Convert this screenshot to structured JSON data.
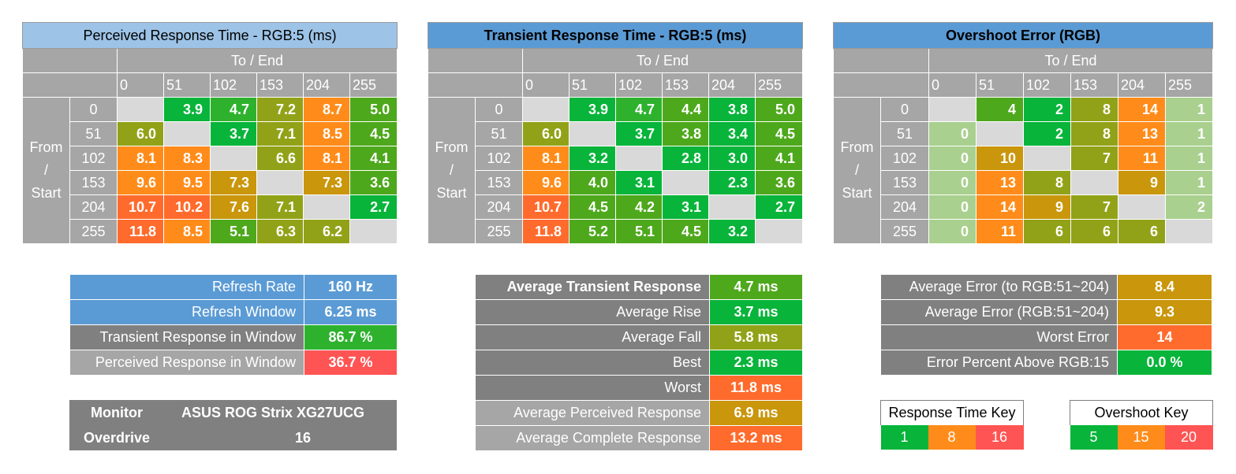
{
  "colors": {
    "green": "#08b43a",
    "green2": "#2eb22e",
    "green3": "#4ea81c",
    "olive": "#92a218",
    "mustard": "#c9960c",
    "orange": "#ff8c1a",
    "orangered": "#ff6b2d",
    "red": "#ff5454",
    "paleGreen": "#a9d08e",
    "blueLight": "#9dc3e6",
    "blue": "#5b9bd5",
    "gray": "#a6a6a6",
    "darkGray": "#808080",
    "diag": "#d9d9d9"
  },
  "chart_data": [
    {
      "type": "heatmap",
      "title": "Perceived Response Time - RGB:5 (ms)",
      "column_header": "To / End",
      "row_header": [
        "From",
        "/",
        "Start"
      ],
      "columns": [
        "0",
        "51",
        "102",
        "153",
        "204",
        "255"
      ],
      "rows": [
        "0",
        "51",
        "102",
        "153",
        "204",
        "255"
      ],
      "values": [
        [
          null,
          3.9,
          4.7,
          7.2,
          8.7,
          5.0
        ],
        [
          6.0,
          null,
          3.7,
          7.1,
          8.5,
          4.5
        ],
        [
          8.1,
          8.3,
          null,
          6.6,
          8.1,
          4.1
        ],
        [
          9.6,
          9.5,
          7.3,
          null,
          7.3,
          3.6
        ],
        [
          10.7,
          10.2,
          7.6,
          7.1,
          null,
          2.7
        ],
        [
          11.8,
          8.5,
          5.1,
          6.3,
          6.2,
          null
        ]
      ]
    },
    {
      "type": "heatmap",
      "title": "Transient Response Time - RGB:5 (ms)",
      "column_header": "To / End",
      "row_header": [
        "From",
        "/",
        "Start"
      ],
      "columns": [
        "0",
        "51",
        "102",
        "153",
        "204",
        "255"
      ],
      "rows": [
        "0",
        "51",
        "102",
        "153",
        "204",
        "255"
      ],
      "values": [
        [
          null,
          3.9,
          4.7,
          4.4,
          3.8,
          5.0
        ],
        [
          6.0,
          null,
          3.7,
          3.8,
          3.4,
          4.5
        ],
        [
          8.1,
          3.2,
          null,
          2.8,
          3.0,
          4.1
        ],
        [
          9.6,
          4.0,
          3.1,
          null,
          2.3,
          3.6
        ],
        [
          10.7,
          4.5,
          4.2,
          3.1,
          null,
          2.7
        ],
        [
          11.8,
          5.2,
          5.1,
          4.5,
          3.2,
          null
        ]
      ]
    },
    {
      "type": "heatmap",
      "title": "Overshoot Error (RGB)",
      "column_header": "To / End",
      "row_header": [
        "From",
        "/",
        "Start"
      ],
      "columns": [
        "0",
        "51",
        "102",
        "153",
        "204",
        "255"
      ],
      "rows": [
        "0",
        "51",
        "102",
        "153",
        "204",
        "255"
      ],
      "values": [
        [
          null,
          4,
          2,
          8,
          14,
          1
        ],
        [
          0,
          null,
          2,
          8,
          13,
          1
        ],
        [
          0,
          10,
          null,
          7,
          11,
          1
        ],
        [
          0,
          13,
          8,
          null,
          9,
          1
        ],
        [
          0,
          14,
          9,
          7,
          null,
          2
        ],
        [
          0,
          11,
          6,
          6,
          6,
          null
        ]
      ]
    }
  ],
  "cell_colors": [
    [
      [
        null,
        "green",
        "green2",
        "olive",
        "orange",
        "green3"
      ],
      [
        "olive",
        null,
        "green",
        "olive",
        "orange",
        "green3"
      ],
      [
        "orange",
        "orange",
        null,
        "olive",
        "orange",
        "green3"
      ],
      [
        "orange",
        "orange",
        "mustard",
        null,
        "mustard",
        "green3"
      ],
      [
        "orangered",
        "orangered",
        "mustard",
        "olive",
        null,
        "green"
      ],
      [
        "orangered",
        "orange",
        "green3",
        "olive",
        "olive",
        null
      ]
    ],
    [
      [
        null,
        "green",
        "green2",
        "green3",
        "green",
        "green3"
      ],
      [
        "olive",
        null,
        "green",
        "green3",
        "green",
        "green3"
      ],
      [
        "orange",
        "green",
        null,
        "green",
        "green",
        "green3"
      ],
      [
        "orange",
        "green3",
        "green",
        null,
        "green",
        "green3"
      ],
      [
        "orangered",
        "green3",
        "green3",
        "green",
        null,
        "green"
      ],
      [
        "orangered",
        "green3",
        "green3",
        "green3",
        "green",
        null
      ]
    ],
    [
      [
        null,
        "green3",
        "green",
        "olive",
        "orange",
        "paleGreen"
      ],
      [
        "paleGreen",
        null,
        "green",
        "olive",
        "orange",
        "paleGreen"
      ],
      [
        "paleGreen",
        "mustard",
        null,
        "olive",
        "orange",
        "paleGreen"
      ],
      [
        "paleGreen",
        "orange",
        "olive",
        null,
        "mustard",
        "paleGreen"
      ],
      [
        "paleGreen",
        "orange",
        "mustard",
        "olive",
        null,
        "paleGreen"
      ],
      [
        "paleGreen",
        "orange",
        "olive",
        "olive",
        "olive",
        null
      ]
    ]
  ],
  "refresh_panel": [
    {
      "label": "Refresh Rate",
      "value": "160 Hz",
      "label_bg": "blue",
      "value_bg": "blue"
    },
    {
      "label": "Refresh Window",
      "value": "6.25 ms",
      "label_bg": "blue",
      "value_bg": "blue"
    },
    {
      "label": "Transient Response in Window",
      "value": "86.7 %",
      "label_bg": "darkGray",
      "value_bg": "green2"
    },
    {
      "label": "Perceived Response in Window",
      "value": "36.7 %",
      "label_bg": "gray",
      "value_bg": "red"
    }
  ],
  "monitor_panel": {
    "monitor_label": "Monitor",
    "monitor_value": "ASUS ROG Strix XG27UCG",
    "overdrive_label": "Overdrive",
    "overdrive_value": "16"
  },
  "transient_panel": [
    {
      "label": "Average Transient Response",
      "value": "4.7 ms",
      "bold": true,
      "label_bg": "darkGray",
      "value_bg": "green3"
    },
    {
      "label": "Average Rise",
      "value": "3.7 ms",
      "bold": false,
      "label_bg": "darkGray",
      "value_bg": "green"
    },
    {
      "label": "Average Fall",
      "value": "5.8 ms",
      "bold": false,
      "label_bg": "darkGray",
      "value_bg": "olive"
    },
    {
      "label": "Best",
      "value": "2.3 ms",
      "bold": false,
      "label_bg": "darkGray",
      "value_bg": "green"
    },
    {
      "label": "Worst",
      "value": "11.8 ms",
      "bold": false,
      "label_bg": "darkGray",
      "value_bg": "orangered"
    },
    {
      "label": "Average Perceived Response",
      "value": "6.9 ms",
      "bold": false,
      "label_bg": "gray",
      "value_bg": "mustard"
    },
    {
      "label": "Average Complete Response",
      "value": "13.2 ms",
      "bold": false,
      "label_bg": "gray",
      "value_bg": "orangered"
    }
  ],
  "error_panel": [
    {
      "label": "Average Error (to RGB:51~204)",
      "value": "8.4",
      "value_bg": "mustard"
    },
    {
      "label": "Average Error (RGB:51~204)",
      "value": "9.3",
      "value_bg": "mustard"
    },
    {
      "label": "Worst Error",
      "value": "14",
      "value_bg": "orangered"
    },
    {
      "label": "Error Percent Above RGB:15",
      "value": "0.0 %",
      "value_bg": "green"
    }
  ],
  "response_key": {
    "title": "Response Time Key",
    "values": [
      "1",
      "8",
      "16"
    ],
    "colors": [
      "green",
      "orange",
      "red"
    ]
  },
  "overshoot_key": {
    "title": "Overshoot Key",
    "values": [
      "5",
      "15",
      "20"
    ],
    "colors": [
      "green",
      "orange",
      "red"
    ]
  }
}
